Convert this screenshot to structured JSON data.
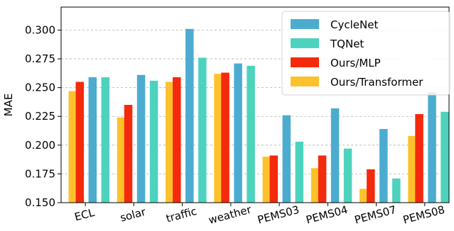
{
  "chart_data": {
    "type": "bar",
    "ylabel": "MAE",
    "xlabel": "",
    "ylim": [
      0.15,
      0.32
    ],
    "yticks": [
      "0.150",
      "0.175",
      "0.200",
      "0.225",
      "0.250",
      "0.275",
      "0.300"
    ],
    "grid": "horizontal dashed",
    "legend_position": "top-right",
    "categories": [
      "ECL",
      "solar",
      "traffic",
      "weather",
      "PEMS03",
      "PEMS04",
      "PEMS07",
      "PEMS08"
    ],
    "series": [
      {
        "name": "Ours/Transformer",
        "color": "#fdc22b",
        "values": [
          0.247,
          0.224,
          0.255,
          0.262,
          0.19,
          0.18,
          0.162,
          0.208
        ]
      },
      {
        "name": "Ours/MLP",
        "color": "#f42a0c",
        "values": [
          0.255,
          0.235,
          0.259,
          0.263,
          0.191,
          0.191,
          0.179,
          0.227
        ]
      },
      {
        "name": "CycleNet",
        "color": "#4cacd0",
        "values": [
          0.259,
          0.261,
          0.301,
          0.271,
          0.226,
          0.232,
          0.214,
          0.246
        ]
      },
      {
        "name": "TQNet",
        "color": "#4dd3bd",
        "values": [
          0.259,
          0.256,
          0.276,
          0.269,
          0.203,
          0.197,
          0.171,
          0.229
        ]
      }
    ],
    "legend_order": [
      "CycleNet",
      "TQNet",
      "Ours/MLP",
      "Ours/Transformer"
    ]
  }
}
